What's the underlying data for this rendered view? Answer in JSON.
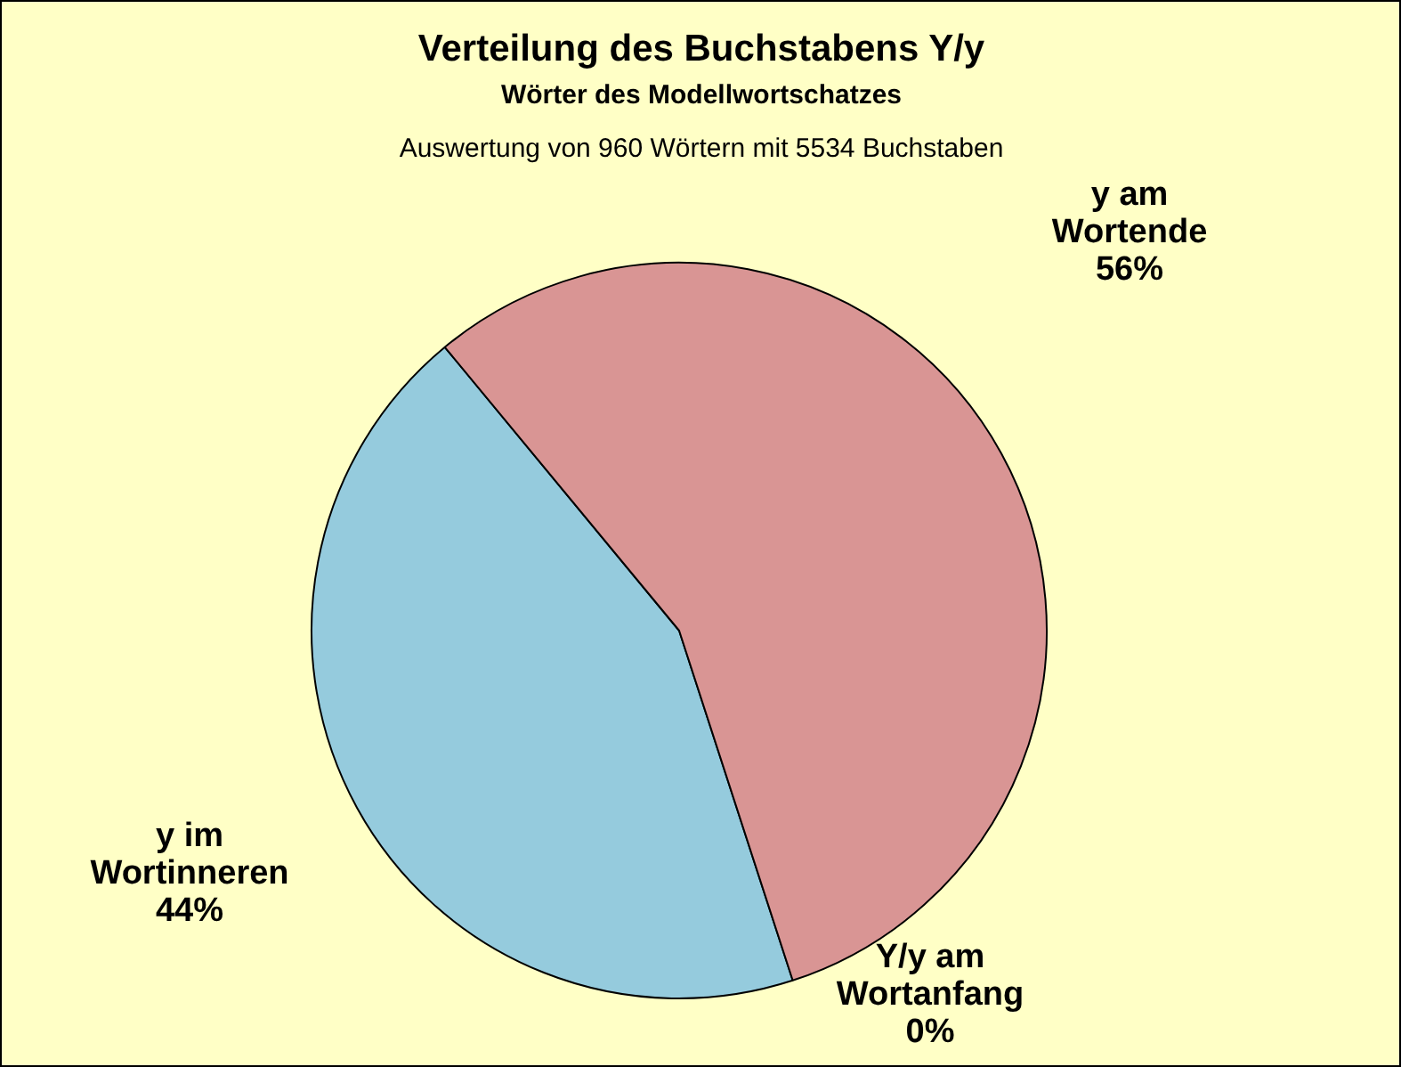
{
  "chart_data": {
    "type": "pie",
    "title": "Verteilung des Buchstabens Y/y",
    "subtitle": "Wörter des Modellwortschatzes",
    "annotations": [
      "Auswertung von 960 Wörtern mit 5534 Buchstaben"
    ],
    "categories": [
      "Y/y am Wortanfang",
      "y im Wortinneren",
      "y am Wortende"
    ],
    "values": [
      0,
      44,
      56
    ],
    "colors": [
      "#9999ff",
      "#95cbdd",
      "#d99594"
    ],
    "value_labels": [
      "0%",
      "44%",
      "56%"
    ]
  }
}
